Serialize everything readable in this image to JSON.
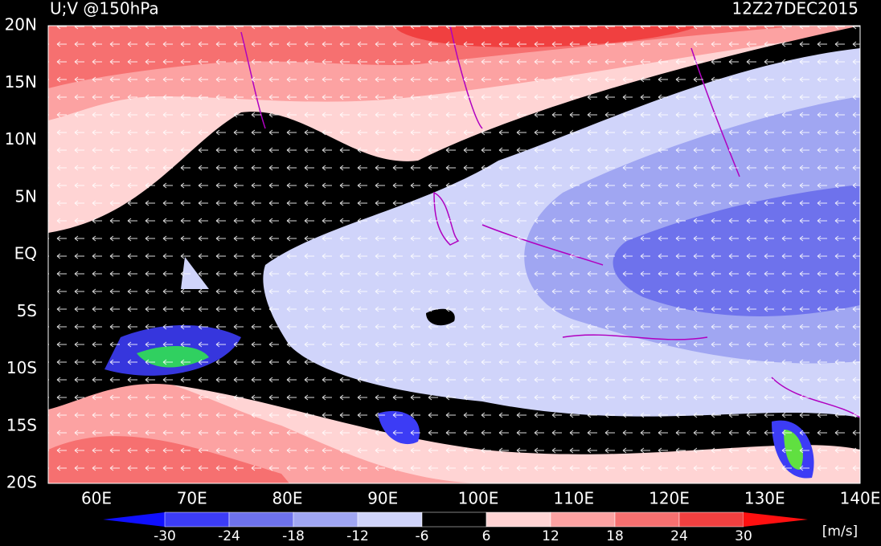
{
  "title": "U;V @150hPa",
  "time": "12Z27DEC2015",
  "lat_labels": [
    "20N",
    "15N",
    "10N",
    "5N",
    "EQ",
    "5S",
    "10S",
    "15S",
    "20S"
  ],
  "lon_labels": [
    "60E",
    "70E",
    "80E",
    "90E",
    "100E",
    "110E",
    "120E",
    "130E",
    "140E"
  ],
  "colorbar": {
    "levels": [
      -30,
      -24,
      -18,
      -12,
      -6,
      6,
      12,
      18,
      24,
      30
    ],
    "colors": [
      "#1010ff",
      "#3c3cf5",
      "#6e72ec",
      "#a0a6f2",
      "#d0d4fa",
      "#000000",
      "#ffd4d4",
      "#fca2a2",
      "#f67070",
      "#f04040",
      "#ff1010"
    ],
    "unit": "[m/s]"
  }
}
